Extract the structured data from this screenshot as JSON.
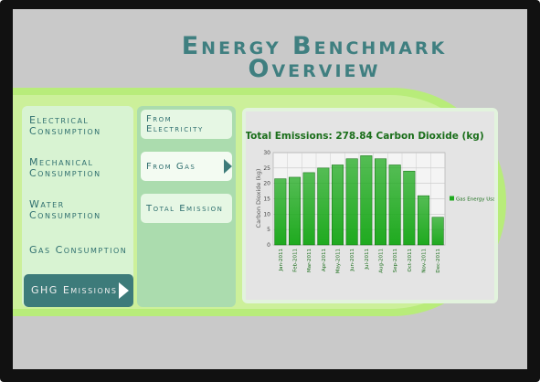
{
  "header": {
    "title": "Energy Benchmark Overview"
  },
  "menu": [
    "Electrical Consumption",
    "Mechanical Consumption",
    "Water Consumption",
    "Gas Consumption",
    "GHG Emissions"
  ],
  "submenu": [
    "From Electricity",
    "From Gas",
    "Total Emission"
  ],
  "chart_data": {
    "type": "bar",
    "title": "Total Emissions: 278.84 Carbon Dioxide (kg)",
    "y_label": "Carbon Dioxide (kg)",
    "categories": [
      "Jan-2011",
      "Feb-2011",
      "Mar-2011",
      "Apr-2011",
      "May-2011",
      "Jun-2011",
      "Jul-2011",
      "Aug-2011",
      "Sep-2011",
      "Oct-2011",
      "Nov-2011",
      "Dec-2011"
    ],
    "series": [
      {
        "name": "Gas Energy Usage",
        "color": "#1faa1f",
        "values": [
          21.5,
          22,
          23.5,
          25,
          26,
          28,
          29,
          28,
          26,
          24,
          16,
          9
        ]
      }
    ],
    "ylim": [
      0,
      30
    ],
    "yticks": [
      0,
      5,
      10,
      15,
      20,
      25,
      30
    ],
    "grid": true,
    "legend": "right"
  }
}
